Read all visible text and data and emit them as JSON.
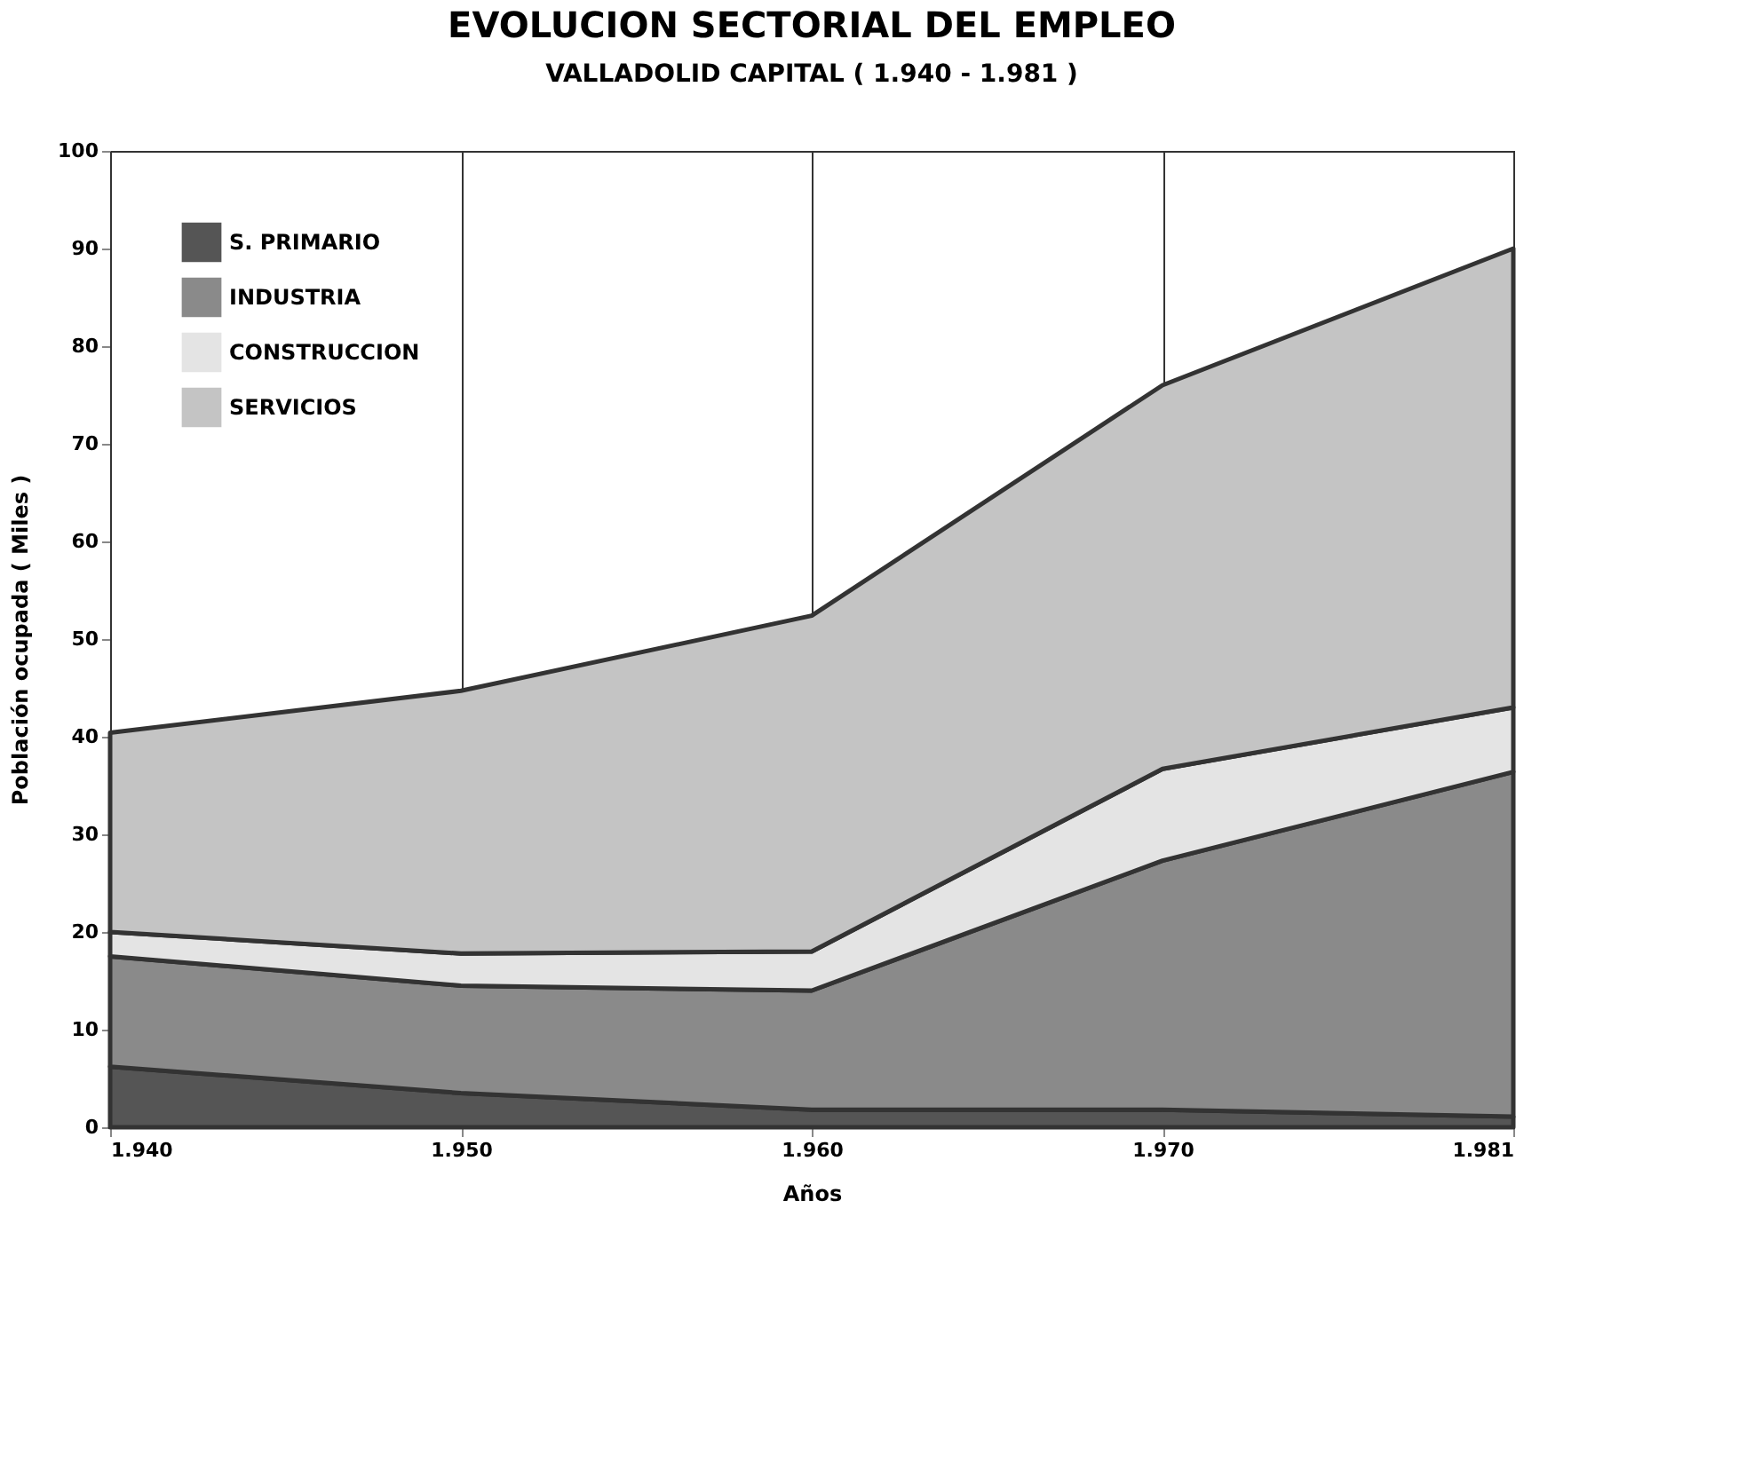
{
  "chart_data": {
    "type": "area",
    "stacked": true,
    "title": "EVOLUCION SECTORIAL DEL EMPLEO",
    "subtitle": "VALLADOLID CAPITAL ( 1.940 - 1.981 )",
    "xlabel": "Años",
    "ylabel": "Población ocupada ( Miles )",
    "categories": [
      "1.940",
      "1.950",
      "1.960",
      "1.970",
      "1.981"
    ],
    "series": [
      {
        "name": "S. PRIMARIO",
        "color": "#555555",
        "values": [
          6.2,
          3.5,
          1.8,
          1.8,
          1.1
        ]
      },
      {
        "name": "INDUSTRIA",
        "color": "#8a8a8a",
        "values": [
          11.3,
          11,
          12.2,
          25.5,
          35.3
        ]
      },
      {
        "name": "CONSTRUCCION",
        "color": "#e4e4e4",
        "values": [
          2.5,
          3.3,
          4,
          9.4,
          6.6
        ]
      },
      {
        "name": "SERVICIOS",
        "color": "#c4c4c4",
        "values": [
          20.4,
          26.9,
          34.4,
          39.3,
          47
        ]
      }
    ],
    "ylim": [
      0,
      100
    ],
    "yticks": [
      0,
      10,
      20,
      30,
      40,
      50,
      60,
      70,
      80,
      90,
      100
    ],
    "grid": "x",
    "legend": "top left"
  }
}
